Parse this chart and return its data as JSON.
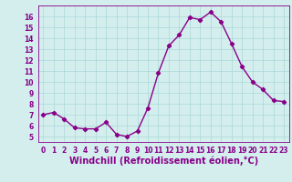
{
  "x": [
    0,
    1,
    2,
    3,
    4,
    5,
    6,
    7,
    8,
    9,
    10,
    11,
    12,
    13,
    14,
    15,
    16,
    17,
    18,
    19,
    20,
    21,
    22,
    23
  ],
  "y": [
    7.0,
    7.2,
    6.6,
    5.8,
    5.7,
    5.7,
    6.3,
    5.2,
    5.0,
    5.5,
    7.6,
    10.8,
    13.3,
    14.3,
    15.9,
    15.7,
    16.4,
    15.5,
    13.5,
    11.4,
    10.0,
    9.3,
    8.3,
    8.2
  ],
  "line_color": "#880088",
  "marker": "D",
  "marker_size": 2.2,
  "linewidth": 1.0,
  "xlabel": "Windchill (Refroidissement éolien,°C)",
  "xlim": [
    -0.5,
    23.5
  ],
  "ylim": [
    4.5,
    17.0
  ],
  "yticks": [
    5,
    6,
    7,
    8,
    9,
    10,
    11,
    12,
    13,
    14,
    15,
    16
  ],
  "xticks": [
    0,
    1,
    2,
    3,
    4,
    5,
    6,
    7,
    8,
    9,
    10,
    11,
    12,
    13,
    14,
    15,
    16,
    17,
    18,
    19,
    20,
    21,
    22,
    23
  ],
  "background_color": "#d4eeee",
  "grid_color": "#aad8d8",
  "tick_color": "#880088",
  "label_color": "#880088",
  "tick_fontsize": 5.5,
  "xlabel_fontsize": 7.0
}
